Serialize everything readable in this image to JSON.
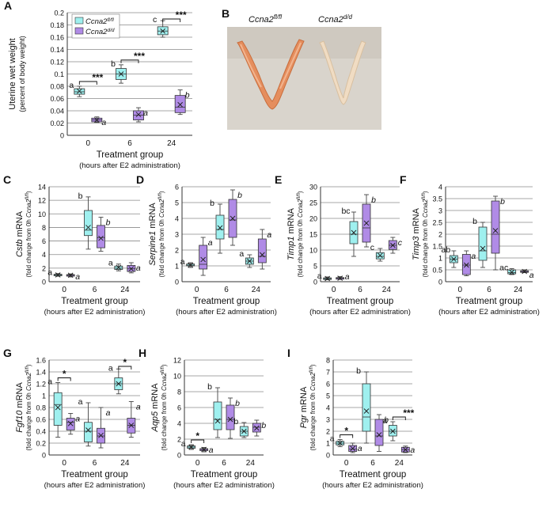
{
  "figure": {
    "panel_b": {
      "letter": "B",
      "label_left": "Ccna2",
      "label_left_sup": "fl/fl",
      "label_right": "Ccna2",
      "label_right_sup": "d/d"
    },
    "common": {
      "xlabel": "Treatment group",
      "xsublabel": "(hours after E2 administration)",
      "fold_prefix": "(fold change from 0h ",
      "fold_ccna2": "Ccna2",
      "fold_sup": "fl/fl",
      "fold_suffix": ")",
      "mrna": " mRNA"
    },
    "colors": {
      "flfl": "#9ff0ef",
      "dd": "#b08be6",
      "grid": "#8a8a8a",
      "axis": "#333333"
    }
  },
  "chart_data": [
    {
      "panel": "A",
      "type": "box",
      "title": "",
      "ylabel": "Uterine wet weight",
      "ylabel_sub": "(percent of body weight)",
      "gene": "",
      "gene_italic": false,
      "categories": [
        "0",
        "6",
        "24"
      ],
      "ylim": [
        0,
        0.2
      ],
      "yticks": [
        "0",
        "0.02",
        "0.04",
        "0.06",
        "0.08",
        "0.1",
        "0.12",
        "0.14",
        "0.16",
        "0.18",
        "0.2"
      ],
      "legend": [
        "Ccna2",
        "Ccna2"
      ],
      "legend_sup": [
        "fl/fl",
        "d/d"
      ],
      "series": [
        {
          "name": "Ccna2 fl/fl",
          "boxes": [
            {
              "min": 0.063,
              "q1": 0.067,
              "median": 0.071,
              "mean": 0.072,
              "q3": 0.076,
              "max": 0.08
            },
            {
              "min": 0.085,
              "q1": 0.091,
              "median": 0.1,
              "mean": 0.1,
              "q3": 0.109,
              "max": 0.115
            },
            {
              "min": 0.16,
              "q1": 0.164,
              "median": 0.17,
              "mean": 0.17,
              "q3": 0.177,
              "max": 0.187
            }
          ]
        },
        {
          "name": "Ccna2 d/d",
          "boxes": [
            {
              "min": 0.021,
              "q1": 0.022,
              "median": 0.025,
              "mean": 0.025,
              "q3": 0.028,
              "max": 0.03
            },
            {
              "min": 0.022,
              "q1": 0.025,
              "median": 0.033,
              "mean": 0.034,
              "q3": 0.04,
              "max": 0.045
            },
            {
              "min": 0.034,
              "q1": 0.037,
              "median": 0.046,
              "mean": 0.05,
              "q3": 0.065,
              "max": 0.074
            }
          ]
        }
      ],
      "letters": [
        [
          "a",
          "b",
          "c"
        ],
        [
          "a",
          "a",
          "b"
        ]
      ],
      "sig": [
        {
          "group": 0,
          "text": "***"
        },
        {
          "group": 1,
          "text": "***"
        },
        {
          "group": 2,
          "text": "***"
        }
      ]
    },
    {
      "panel": "C",
      "type": "box",
      "gene": "Cstb",
      "gene_italic": true,
      "categories": [
        "0",
        "6",
        "24"
      ],
      "ylim": [
        0,
        14
      ],
      "yticks": [
        "0",
        "2",
        "4",
        "6",
        "8",
        "10",
        "12",
        "14"
      ],
      "series": [
        {
          "name": "Ccna2 fl/fl",
          "boxes": [
            {
              "min": 0.8,
              "q1": 0.9,
              "median": 1.0,
              "mean": 1.0,
              "q3": 1.1,
              "max": 1.2
            },
            {
              "min": 4.8,
              "q1": 6.8,
              "median": 7.6,
              "mean": 8.0,
              "q3": 10.5,
              "max": 12.5
            },
            {
              "min": 1.6,
              "q1": 1.8,
              "median": 2.0,
              "mean": 2.1,
              "q3": 2.3,
              "max": 2.6
            }
          ]
        },
        {
          "name": "Ccna2 d/d",
          "boxes": [
            {
              "min": 0.7,
              "q1": 0.85,
              "median": 0.95,
              "mean": 0.95,
              "q3": 1.05,
              "max": 1.15
            },
            {
              "min": 4.5,
              "q1": 5.0,
              "median": 6.5,
              "mean": 6.4,
              "q3": 8.3,
              "max": 9.5
            },
            {
              "min": 1.3,
              "q1": 1.5,
              "median": 1.9,
              "mean": 1.9,
              "q3": 2.4,
              "max": 2.8
            }
          ]
        }
      ],
      "letters": [
        [
          "a",
          "b",
          "a"
        ],
        [
          "a",
          "b",
          "a"
        ]
      ],
      "sig": []
    },
    {
      "panel": "D",
      "type": "box",
      "gene": "Serpine1",
      "gene_italic": true,
      "categories": [
        "0",
        "6",
        "24"
      ],
      "ylim": [
        0,
        6
      ],
      "yticks": [
        "0",
        "1",
        "2",
        "3",
        "4",
        "5",
        "6"
      ],
      "series": [
        {
          "name": "Ccna2 fl/fl",
          "boxes": [
            {
              "min": 0.9,
              "q1": 1.0,
              "median": 1.05,
              "mean": 1.05,
              "q3": 1.12,
              "max": 1.2
            },
            {
              "min": 1.8,
              "q1": 2.7,
              "median": 3.3,
              "mean": 3.4,
              "q3": 4.2,
              "max": 4.9
            },
            {
              "min": 0.9,
              "q1": 1.1,
              "median": 1.3,
              "mean": 1.3,
              "q3": 1.5,
              "max": 1.7
            }
          ]
        },
        {
          "name": "Ccna2 d/d",
          "boxes": [
            {
              "min": 0.4,
              "q1": 0.8,
              "median": 1.1,
              "mean": 1.4,
              "q3": 2.3,
              "max": 2.8
            },
            {
              "min": 2.3,
              "q1": 2.8,
              "median": 3.9,
              "mean": 4.0,
              "q3": 5.2,
              "max": 5.8
            },
            {
              "min": 0.8,
              "q1": 1.2,
              "median": 1.6,
              "mean": 1.7,
              "q3": 2.7,
              "max": 3.3
            }
          ]
        }
      ],
      "letters": [
        [
          "a",
          "b",
          "a"
        ],
        [
          "a",
          "b",
          "a"
        ]
      ],
      "sig": []
    },
    {
      "panel": "E",
      "type": "box",
      "gene": "Timp1",
      "gene_italic": true,
      "categories": [
        "0",
        "6",
        "24"
      ],
      "ylim": [
        0,
        30
      ],
      "yticks": [
        "0",
        "5",
        "10",
        "15",
        "20",
        "25",
        "30"
      ],
      "series": [
        {
          "name": "Ccna2 fl/fl",
          "boxes": [
            {
              "min": 0.6,
              "q1": 0.8,
              "median": 1.0,
              "mean": 1.0,
              "q3": 1.2,
              "max": 1.5
            },
            {
              "min": 8.0,
              "q1": 12.0,
              "median": 15.0,
              "mean": 15.5,
              "q3": 19.0,
              "max": 22.0
            },
            {
              "min": 6.5,
              "q1": 7.2,
              "median": 8.0,
              "mean": 8.3,
              "q3": 9.2,
              "max": 10.5
            }
          ]
        },
        {
          "name": "Ccna2 d/d",
          "boxes": [
            {
              "min": 0.7,
              "q1": 0.9,
              "median": 1.1,
              "mean": 1.1,
              "q3": 1.3,
              "max": 1.6
            },
            {
              "min": 11.0,
              "q1": 12.5,
              "median": 17.0,
              "mean": 18.5,
              "q3": 24.5,
              "max": 27.5
            },
            {
              "min": 9.0,
              "q1": 10.2,
              "median": 11.5,
              "mean": 11.5,
              "q3": 13.0,
              "max": 14.0
            }
          ]
        }
      ],
      "letters": [
        [
          "a",
          "bc",
          "c"
        ],
        [
          "a",
          "b",
          "c"
        ]
      ],
      "sig": []
    },
    {
      "panel": "F",
      "type": "box",
      "gene": "Timp3",
      "gene_italic": true,
      "categories": [
        "0",
        "6",
        "24"
      ],
      "ylim": [
        0,
        4
      ],
      "yticks": [
        "0",
        "0.5",
        "1",
        "1.5",
        "2",
        "2.5",
        "3",
        "3.5",
        "4"
      ],
      "series": [
        {
          "name": "Ccna2 fl/fl",
          "boxes": [
            {
              "min": 0.6,
              "q1": 0.8,
              "median": 0.95,
              "mean": 0.95,
              "q3": 1.1,
              "max": 1.3
            },
            {
              "min": 0.6,
              "q1": 0.9,
              "median": 1.3,
              "mean": 1.4,
              "q3": 2.3,
              "max": 2.5
            },
            {
              "min": 0.3,
              "q1": 0.33,
              "median": 0.38,
              "mean": 0.4,
              "q3": 0.5,
              "max": 0.55
            }
          ]
        },
        {
          "name": "Ccna2 d/d",
          "boxes": [
            {
              "min": 0.25,
              "q1": 0.3,
              "median": 0.7,
              "mean": 0.7,
              "q3": 1.15,
              "max": 1.3
            },
            {
              "min": 0.5,
              "q1": 1.2,
              "median": 2.0,
              "mean": 2.15,
              "q3": 3.4,
              "max": 3.6
            },
            {
              "min": 0.38,
              "q1": 0.4,
              "median": 0.43,
              "mean": 0.43,
              "q3": 0.46,
              "max": 0.5
            }
          ]
        }
      ],
      "letters": [
        [
          "ab",
          "b",
          "ac"
        ],
        [
          "a",
          "b",
          "a"
        ]
      ],
      "sig": []
    },
    {
      "panel": "G",
      "type": "box",
      "gene": "Fgf10",
      "gene_italic": true,
      "categories": [
        "0",
        "6",
        "24"
      ],
      "ylim": [
        0,
        1.6
      ],
      "yticks": [
        "0",
        "0.2",
        "0.4",
        "0.6",
        "0.8",
        "1",
        "1.2",
        "1.4",
        "1.6"
      ],
      "series": [
        {
          "name": "Ccna2 fl/fl",
          "boxes": [
            {
              "min": 0.3,
              "q1": 0.5,
              "median": 0.85,
              "mean": 0.8,
              "q3": 1.05,
              "max": 1.22
            },
            {
              "min": 0.15,
              "q1": 0.22,
              "median": 0.4,
              "mean": 0.42,
              "q3": 0.55,
              "max": 0.88
            },
            {
              "min": 1.03,
              "q1": 1.1,
              "median": 1.2,
              "mean": 1.2,
              "q3": 1.3,
              "max": 1.45
            }
          ]
        },
        {
          "name": "Ccna2 d/d",
          "boxes": [
            {
              "min": 0.35,
              "q1": 0.42,
              "median": 0.55,
              "mean": 0.53,
              "q3": 0.62,
              "max": 0.7
            },
            {
              "min": 0.12,
              "q1": 0.2,
              "median": 0.32,
              "mean": 0.33,
              "q3": 0.45,
              "max": 0.8
            },
            {
              "min": 0.3,
              "q1": 0.37,
              "median": 0.5,
              "mean": 0.5,
              "q3": 0.62,
              "max": 0.9
            }
          ]
        }
      ],
      "letters": [
        [
          "a",
          "a",
          "a"
        ],
        [
          "a",
          "a",
          "a"
        ]
      ],
      "sig": [
        {
          "group": 0,
          "text": "*"
        },
        {
          "group": 2,
          "text": "*"
        }
      ]
    },
    {
      "panel": "H",
      "type": "box",
      "gene": "Aqp5",
      "gene_italic": true,
      "categories": [
        "0",
        "6",
        "24"
      ],
      "ylim": [
        0,
        12
      ],
      "yticks": [
        "0",
        "2",
        "4",
        "6",
        "8",
        "10",
        "12"
      ],
      "series": [
        {
          "name": "Ccna2 fl/fl",
          "boxes": [
            {
              "min": 0.7,
              "q1": 0.85,
              "median": 1.0,
              "mean": 1.0,
              "q3": 1.15,
              "max": 1.3
            },
            {
              "min": 2.2,
              "q1": 3.2,
              "median": 4.5,
              "mean": 4.3,
              "q3": 6.7,
              "max": 8.5
            },
            {
              "min": 2.2,
              "q1": 2.4,
              "median": 3.0,
              "mean": 3.0,
              "q3": 3.6,
              "max": 4.1
            }
          ]
        },
        {
          "name": "Ccna2 d/d",
          "boxes": [
            {
              "min": 0.4,
              "q1": 0.55,
              "median": 0.7,
              "mean": 0.7,
              "q3": 0.8,
              "max": 0.95
            },
            {
              "min": 2.1,
              "q1": 3.2,
              "median": 4.5,
              "mean": 4.5,
              "q3": 6.3,
              "max": 7.2
            },
            {
              "min": 2.4,
              "q1": 2.9,
              "median": 3.5,
              "mean": 3.4,
              "q3": 4.0,
              "max": 4.4
            }
          ]
        }
      ],
      "letters": [
        [
          "a",
          "b",
          "b"
        ],
        [
          "a",
          "b",
          "b"
        ]
      ],
      "sig": [
        {
          "group": 0,
          "text": "*"
        }
      ]
    },
    {
      "panel": "I",
      "type": "box",
      "gene": "Pgr",
      "gene_italic": true,
      "categories": [
        "0",
        "6",
        "24"
      ],
      "ylim": [
        0,
        8
      ],
      "yticks": [
        "0",
        "1",
        "2",
        "3",
        "4",
        "5",
        "6",
        "7",
        "8"
      ],
      "series": [
        {
          "name": "Ccna2 fl/fl",
          "boxes": [
            {
              "min": 0.7,
              "q1": 0.85,
              "median": 1.0,
              "mean": 1.0,
              "q3": 1.15,
              "max": 1.3
            },
            {
              "min": 1.0,
              "q1": 2.0,
              "median": 3.2,
              "mean": 3.7,
              "q3": 6.0,
              "max": 7.0
            },
            {
              "min": 1.2,
              "q1": 1.6,
              "median": 2.0,
              "mean": 2.0,
              "q3": 2.5,
              "max": 2.8
            }
          ]
        },
        {
          "name": "Ccna2 d/d",
          "boxes": [
            {
              "min": 0.2,
              "q1": 0.3,
              "median": 0.5,
              "mean": 0.55,
              "q3": 0.8,
              "max": 1.0
            },
            {
              "min": 0.3,
              "q1": 0.8,
              "median": 1.6,
              "mean": 1.7,
              "q3": 3.0,
              "max": 3.4
            },
            {
              "min": 0.2,
              "q1": 0.25,
              "median": 0.45,
              "mean": 0.45,
              "q3": 0.65,
              "max": 0.75
            }
          ]
        }
      ],
      "letters": [
        [
          "a",
          "b",
          "a"
        ],
        [
          "a",
          "b",
          "a"
        ]
      ],
      "sig": [
        {
          "group": 0,
          "text": "*"
        },
        {
          "group": 2,
          "text": "***"
        }
      ]
    }
  ]
}
